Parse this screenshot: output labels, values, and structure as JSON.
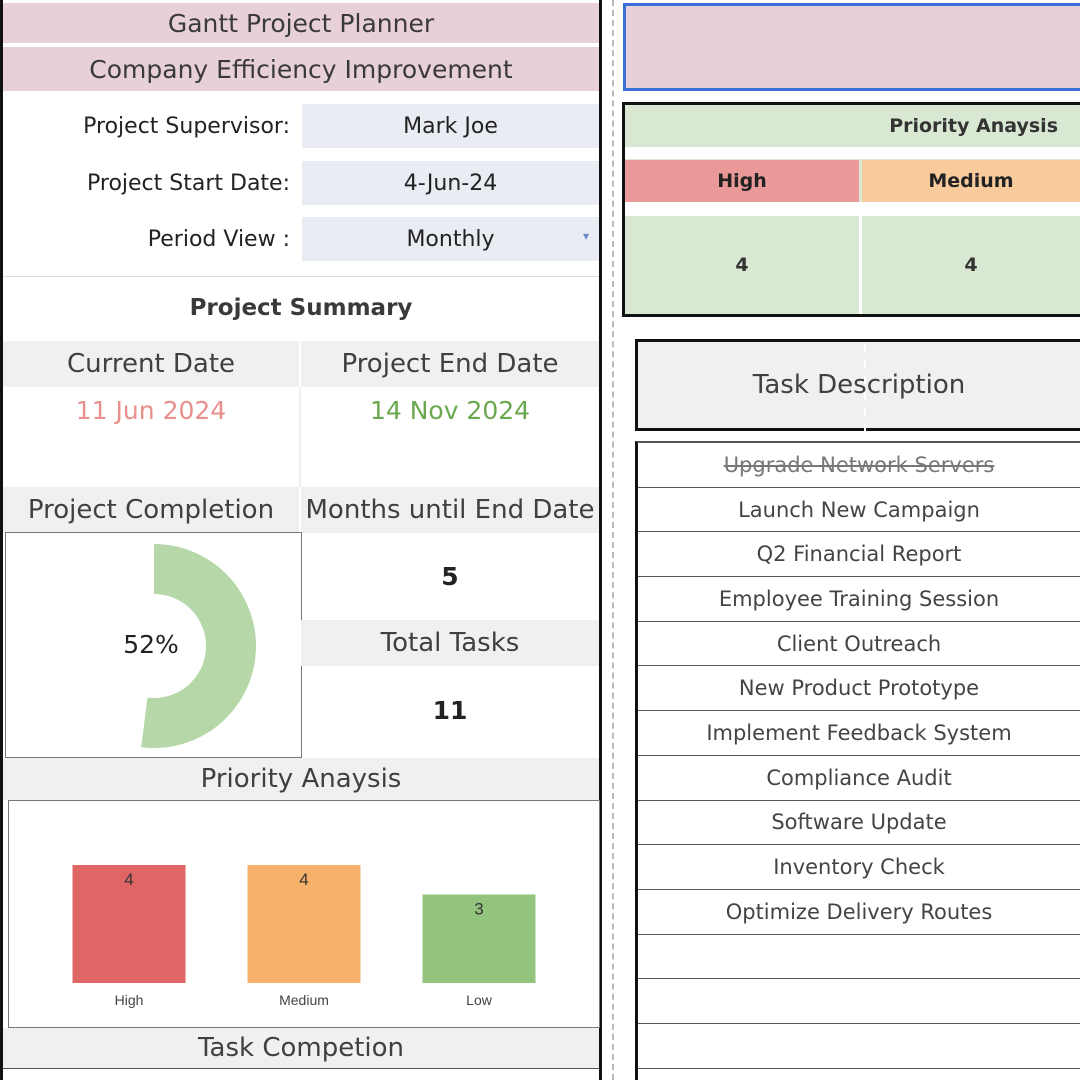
{
  "header": {
    "title": "Gantt Project Planner",
    "subtitle": "Company Efficiency Improvement"
  },
  "info": {
    "supervisor_label": "Project Supervisor:",
    "supervisor_value": "Mark Joe",
    "start_label": "Project Start Date:",
    "start_value": "4-Jun-24",
    "period_label": "Period View :",
    "period_value": "Monthly"
  },
  "summary": {
    "title": "Project Summary",
    "current_date_label": "Current Date",
    "current_date_value": "11 Jun 2024",
    "end_date_label": "Project End Date",
    "end_date_value": "14 Nov 2024",
    "completion_label": "Project Completion",
    "completion_value": "52%",
    "completion_fraction": 0.52,
    "months_label": "Months until End Date",
    "months_value": "5",
    "total_tasks_label": "Total Tasks",
    "total_tasks_value": "11"
  },
  "priority_chart": {
    "title": "Priority Anaysis"
  },
  "chart_data": {
    "type": "bar",
    "categories": [
      "High",
      "Medium",
      "Low"
    ],
    "values": [
      4,
      4,
      3
    ],
    "colors": [
      "#e06666",
      "#f6b26b",
      "#93c47d"
    ],
    "ylim": [
      0,
      4
    ]
  },
  "task_completion": {
    "title": "Task Competion"
  },
  "right_panel": {
    "priority_title": "Priority Anaysis",
    "high_label": "High",
    "medium_label": "Medium",
    "high_count": "4",
    "medium_count": "4",
    "task_header": "Task Description",
    "tasks": [
      {
        "name": "Upgrade Network Servers",
        "done": true
      },
      {
        "name": "Launch New Campaign",
        "done": false
      },
      {
        "name": "Q2 Financial Report",
        "done": false
      },
      {
        "name": "Employee Training Session",
        "done": false
      },
      {
        "name": "Client Outreach",
        "done": false
      },
      {
        "name": "New Product Prototype",
        "done": false
      },
      {
        "name": "Implement Feedback System",
        "done": false
      },
      {
        "name": "Compliance Audit",
        "done": false
      },
      {
        "name": "Software Update",
        "done": false
      },
      {
        "name": "Inventory Check",
        "done": false
      },
      {
        "name": "Optimize Delivery Routes",
        "done": false
      }
    ]
  },
  "colors": {
    "pink": "#e8d0da",
    "current_date": "#e8908e",
    "end_date": "#6aa84f",
    "donut": "#b6d7a8",
    "high": "#ea9999",
    "medium": "#f9cb9c",
    "light_green": "#d8e8d2"
  }
}
